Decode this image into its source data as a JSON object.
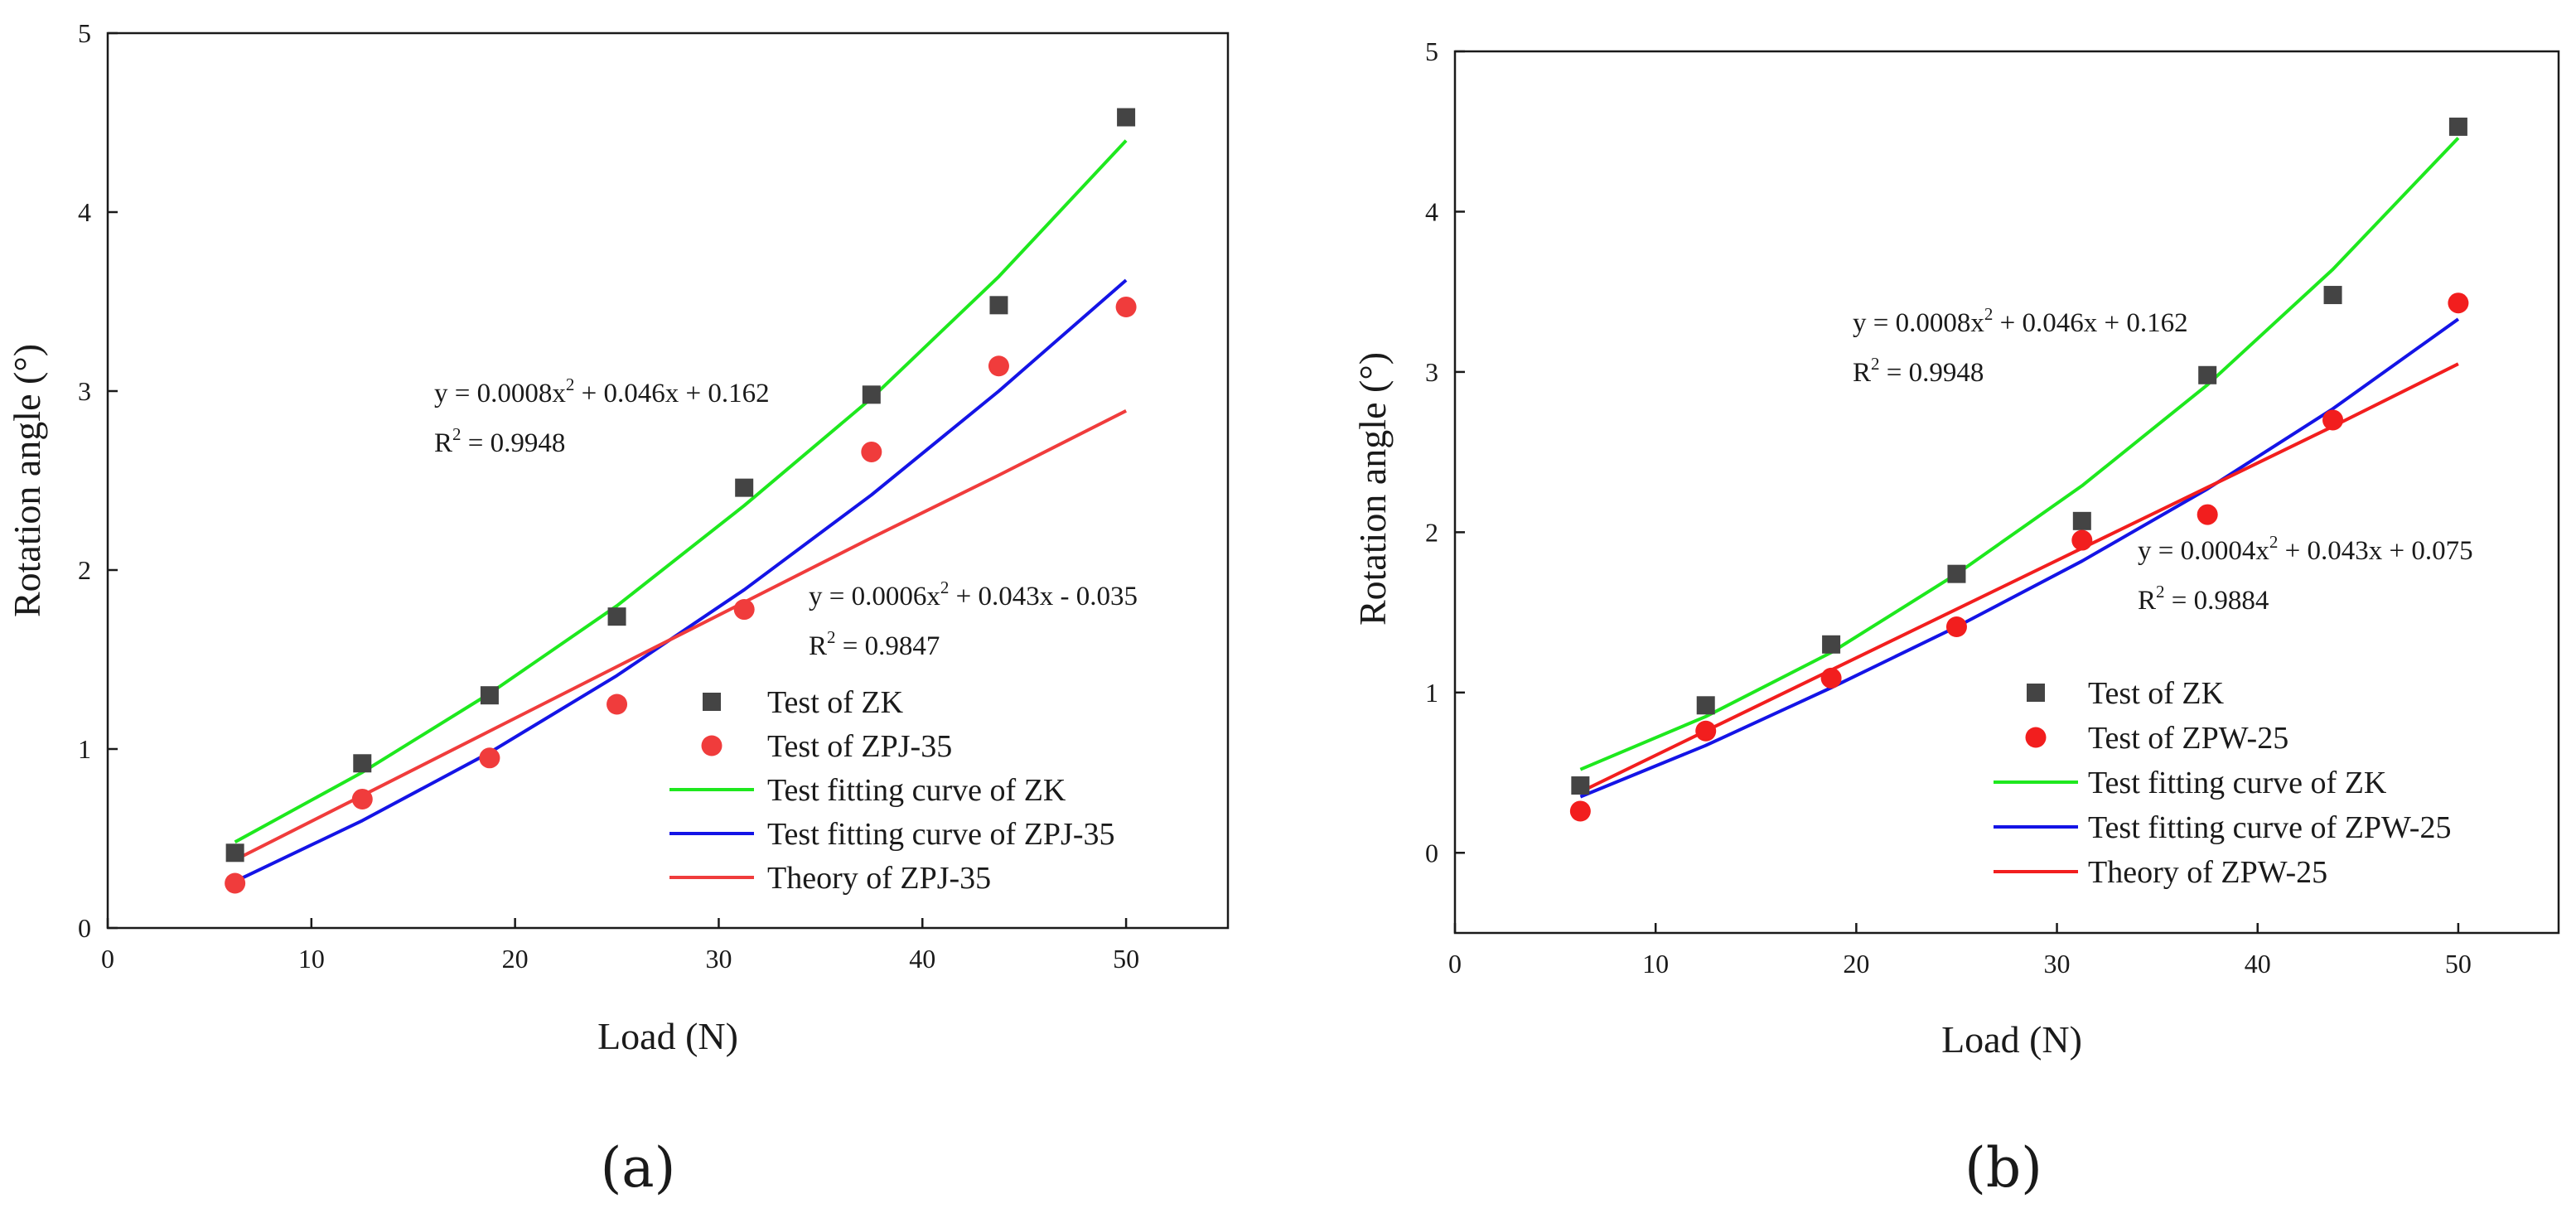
{
  "chart_data": [
    {
      "type": "scatter",
      "panel_label": "(a)",
      "xlabel": "Load (N)",
      "ylabel": "Rotation angle (°)",
      "xlim": [
        0,
        55
      ],
      "ylim": [
        0,
        5
      ],
      "xticks": [
        "0",
        "10",
        "20",
        "30",
        "40",
        "50"
      ],
      "yticks": [
        "0",
        "1",
        "2",
        "3",
        "4",
        "5"
      ],
      "x": [
        6.25,
        12.5,
        18.75,
        25,
        31.25,
        37.5,
        43.75,
        50
      ],
      "series": [
        {
          "name": "Test of ZK",
          "kind": "square",
          "color": "#444444",
          "values": [
            0.42,
            0.92,
            1.3,
            1.74,
            2.46,
            2.98,
            3.48,
            4.53
          ]
        },
        {
          "name": "Test of ZPJ-35",
          "kind": "circle",
          "color": "#f03c3c",
          "values": [
            0.25,
            0.72,
            0.95,
            1.25,
            1.78,
            2.66,
            3.14,
            3.47
          ]
        }
      ],
      "curves": [
        {
          "name": "Test fitting curve of ZK",
          "color": "#1ee81e",
          "x": [
            6.25,
            12.5,
            18.75,
            25,
            31.25,
            37.5,
            43.75,
            50
          ],
          "values": [
            0.48,
            0.87,
            1.31,
            1.8,
            2.36,
            2.96,
            3.64,
            4.4
          ]
        },
        {
          "name": "Test fitting curve of ZPJ-35",
          "color": "#1414e6",
          "x": [
            6.25,
            12.5,
            18.75,
            25,
            31.25,
            37.5,
            43.75,
            50
          ],
          "values": [
            0.26,
            0.6,
            0.98,
            1.41,
            1.89,
            2.42,
            3.0,
            3.62
          ]
        },
        {
          "name": "Theory of ZPJ-35",
          "color": "#f03c3c",
          "x": [
            6.25,
            12.5,
            18.75,
            25,
            31.25,
            37.5,
            43.75,
            50
          ],
          "values": [
            0.38,
            0.74,
            1.1,
            1.46,
            1.82,
            2.18,
            2.53,
            2.89
          ]
        }
      ],
      "annotations": [
        {
          "base": "y = 0.0008x",
          "exp": "2",
          "rest": " + 0.046x + 0.162",
          "r2_base": "R",
          "r2_exp": "2",
          "r2_rest": " = 0.9948"
        },
        {
          "base": "y = 0.0006x",
          "exp": "2",
          "rest": " + 0.043x - 0.035",
          "r2_base": "R",
          "r2_exp": "2",
          "r2_rest": " = 0.9847"
        }
      ]
    },
    {
      "type": "scatter",
      "panel_label": "(b)",
      "xlabel": "Load (N)",
      "ylabel": "Rotation angle (°)",
      "xlim": [
        0,
        55
      ],
      "ylim": [
        -0.5,
        5
      ],
      "xticks": [
        "0",
        "10",
        "20",
        "30",
        "40",
        "50"
      ],
      "yticks": [
        "0",
        "1",
        "2",
        "3",
        "4",
        "5"
      ],
      "x": [
        6.25,
        12.5,
        18.75,
        25,
        31.25,
        37.5,
        43.75,
        50
      ],
      "series": [
        {
          "name": "Test of ZK",
          "kind": "square",
          "color": "#444444",
          "values": [
            0.42,
            0.92,
            1.3,
            1.74,
            2.07,
            2.98,
            3.48,
            4.53
          ]
        },
        {
          "name": "Test of ZPW-25",
          "kind": "circle",
          "color": "#f21e1e",
          "values": [
            0.26,
            0.76,
            1.09,
            1.41,
            1.95,
            2.11,
            2.7,
            3.43
          ]
        }
      ],
      "curves": [
        {
          "name": "Test fitting curve of ZK",
          "color": "#1ee81e",
          "x": [
            6.25,
            12.5,
            18.75,
            25,
            31.25,
            37.5,
            43.75,
            50
          ],
          "values": [
            0.52,
            0.85,
            1.25,
            1.74,
            2.29,
            2.92,
            3.64,
            4.46
          ]
        },
        {
          "name": "Test fitting curve of ZPW-25",
          "color": "#1414e6",
          "x": [
            6.25,
            12.5,
            18.75,
            25,
            31.25,
            37.5,
            43.75,
            50
          ],
          "values": [
            0.35,
            0.67,
            1.03,
            1.41,
            1.82,
            2.27,
            2.77,
            3.33
          ]
        },
        {
          "name": "Theory of ZPW-25",
          "color": "#f21e1e",
          "x": [
            6.25,
            12.5,
            18.75,
            25,
            31.25,
            37.5,
            43.75,
            50
          ],
          "values": [
            0.38,
            0.76,
            1.14,
            1.52,
            1.9,
            2.28,
            2.66,
            3.05
          ]
        }
      ],
      "annotations": [
        {
          "base": "y = 0.0008x",
          "exp": "2",
          "rest": " + 0.046x + 0.162",
          "r2_base": "R",
          "r2_exp": "2",
          "r2_rest": " = 0.9948"
        },
        {
          "base": "y = 0.0004x",
          "exp": "2",
          "rest": " + 0.043x + 0.075",
          "r2_base": "R",
          "r2_exp": "2",
          "r2_rest": " = 0.9884"
        }
      ]
    }
  ]
}
